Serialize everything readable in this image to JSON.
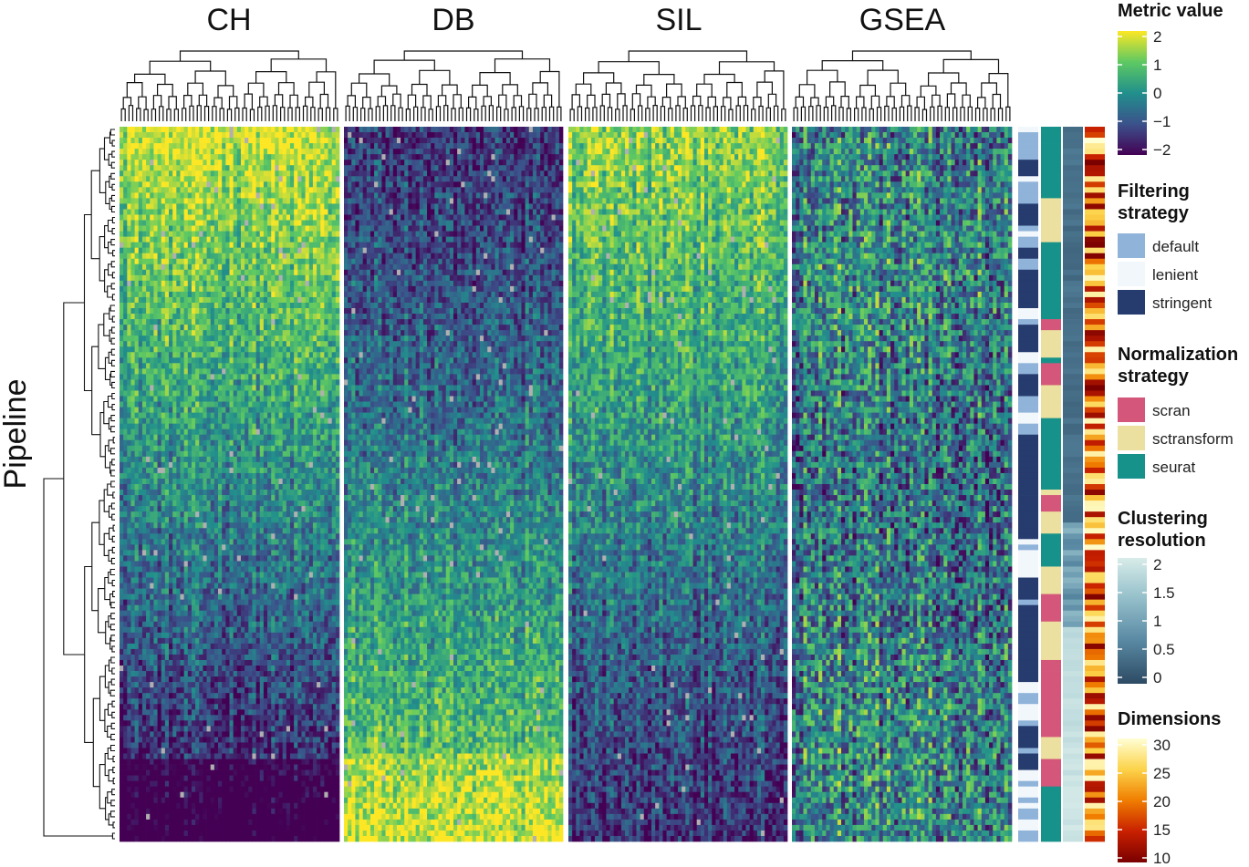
{
  "chart_data": {
    "type": "heatmap",
    "title": "",
    "ylabel": "Pipeline",
    "panels": [
      {
        "name": "CH"
      },
      {
        "name": "DB"
      },
      {
        "name": "SIL"
      },
      {
        "name": "GSEA"
      }
    ],
    "n_rows": 130,
    "metric_range": [
      -2,
      2
    ],
    "legends": {
      "metric": {
        "title": "Metric value",
        "ticks": [
          2,
          1,
          0,
          -1,
          -2
        ],
        "tick_labels": [
          "2",
          "1",
          "0",
          "−1",
          "−2"
        ],
        "colors": [
          "#440154",
          "#3b528b",
          "#21908c",
          "#5ec962",
          "#fde725"
        ]
      },
      "filtering": {
        "title_lines": [
          "Filtering",
          "strategy"
        ],
        "items": [
          {
            "label": "default",
            "color": "#8fb3d9"
          },
          {
            "label": "lenient",
            "color": "#f2f7fc"
          },
          {
            "label": "stringent",
            "color": "#263b6e"
          }
        ]
      },
      "normalization": {
        "title_lines": [
          "Normalization",
          "strategy"
        ],
        "items": [
          {
            "label": "scran",
            "color": "#d4567a"
          },
          {
            "label": "sctransform",
            "color": "#ece0a0"
          },
          {
            "label": "seurat",
            "color": "#16928a"
          }
        ]
      },
      "resolution": {
        "title_lines": [
          "Clustering",
          "resolution"
        ],
        "ticks": [
          2,
          1.5,
          1,
          0.5,
          0
        ],
        "tick_labels": [
          "2",
          "1.5",
          "1",
          "0.5",
          "0"
        ],
        "colors": [
          "#2d4a63",
          "#5a8aa4",
          "#98c2cc",
          "#d8ece9"
        ]
      },
      "dimensions": {
        "title": "Dimensions",
        "ticks": [
          30,
          25,
          20,
          15,
          10
        ],
        "tick_labels": [
          "30",
          "25",
          "20",
          "15",
          "10"
        ],
        "colors": [
          "#7a0000",
          "#c82000",
          "#f07d00",
          "#fcd34a",
          "#ffffd4"
        ]
      }
    }
  }
}
